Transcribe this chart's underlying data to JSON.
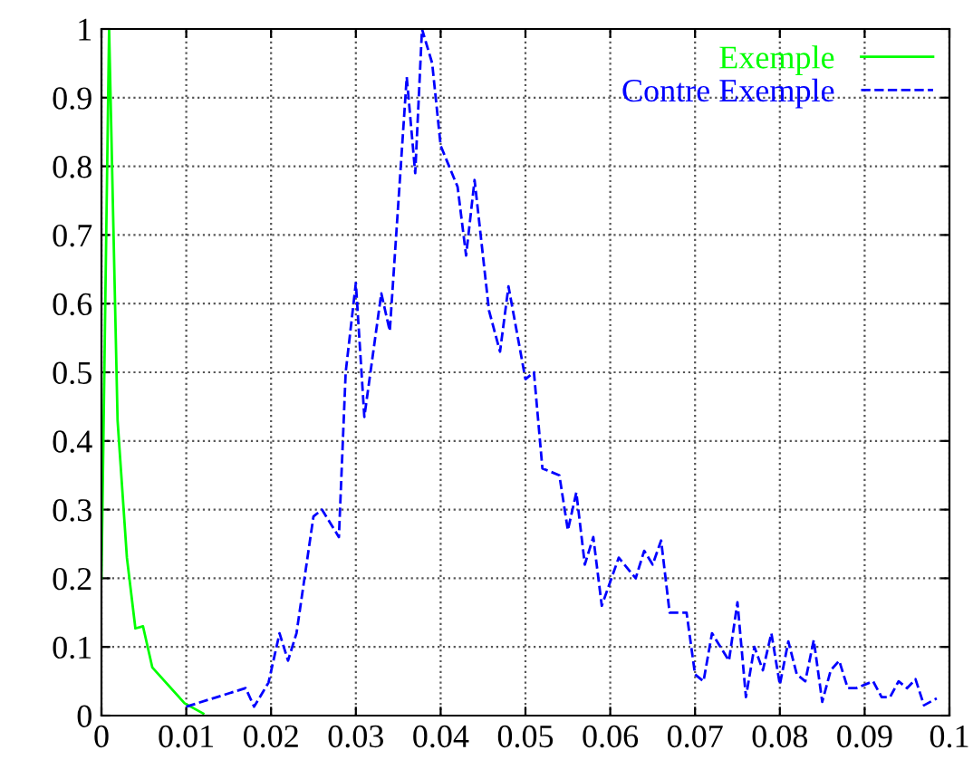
{
  "chart_data": {
    "type": "line",
    "xlim": [
      0,
      0.1
    ],
    "ylim": [
      0,
      1
    ],
    "xticks": [
      0,
      0.01,
      0.02,
      0.03,
      0.04,
      0.05,
      0.06,
      0.07,
      0.08,
      0.09,
      0.1
    ],
    "yticks": [
      0,
      0.1,
      0.2,
      0.3,
      0.4,
      0.5,
      0.6,
      0.7,
      0.8,
      0.9,
      1
    ],
    "grid": true,
    "legend": "top right",
    "series": [
      {
        "name": "Exemple",
        "color": "#00ff00",
        "line_style": "solid",
        "x": [
          0,
          0.0009,
          0.0019,
          0.003,
          0.004,
          0.0049,
          0.006,
          0.0098,
          0.012
        ],
        "values": [
          0.2,
          1.0,
          0.43,
          0.23,
          0.127,
          0.13,
          0.07,
          0.018,
          0.003
        ]
      },
      {
        "name": "Contre Exemple",
        "color": "#0000ff",
        "line_style": "dashed",
        "x": [
          0.01,
          0.017,
          0.018,
          0.0197,
          0.021,
          0.022,
          0.023,
          0.025,
          0.026,
          0.028,
          0.0288,
          0.03,
          0.031,
          0.033,
          0.034,
          0.036,
          0.037,
          0.0378,
          0.039,
          0.04,
          0.042,
          0.043,
          0.044,
          0.0457,
          0.047,
          0.048,
          0.05,
          0.051,
          0.052,
          0.054,
          0.055,
          0.056,
          0.057,
          0.058,
          0.059,
          0.061,
          0.063,
          0.064,
          0.065,
          0.066,
          0.067,
          0.069,
          0.07,
          0.071,
          0.072,
          0.074,
          0.075,
          0.076,
          0.077,
          0.078,
          0.079,
          0.08,
          0.081,
          0.082,
          0.083,
          0.084,
          0.085,
          0.086,
          0.087,
          0.088,
          0.089,
          0.091,
          0.092,
          0.093,
          0.094,
          0.095,
          0.096,
          0.097,
          0.0985
        ],
        "values": [
          0.013,
          0.04,
          0.013,
          0.048,
          0.12,
          0.08,
          0.12,
          0.29,
          0.3,
          0.26,
          0.5,
          0.63,
          0.435,
          0.615,
          0.56,
          0.93,
          0.79,
          1.0,
          0.95,
          0.83,
          0.77,
          0.67,
          0.78,
          0.59,
          0.53,
          0.625,
          0.49,
          0.5,
          0.36,
          0.35,
          0.27,
          0.325,
          0.22,
          0.26,
          0.16,
          0.23,
          0.2,
          0.24,
          0.22,
          0.255,
          0.15,
          0.15,
          0.06,
          0.05,
          0.12,
          0.08,
          0.165,
          0.027,
          0.1,
          0.066,
          0.12,
          0.045,
          0.108,
          0.06,
          0.05,
          0.11,
          0.02,
          0.066,
          0.08,
          0.04,
          0.04,
          0.05,
          0.027,
          0.027,
          0.05,
          0.04,
          0.053,
          0.015,
          0.025
        ]
      }
    ]
  }
}
